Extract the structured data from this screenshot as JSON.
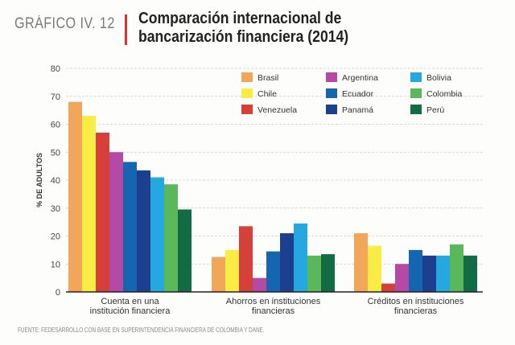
{
  "header": {
    "label": "GRÁFICO IV. 12",
    "title_line1": "Comparación internacional de",
    "title_line2": "bancarización financiera (2014)"
  },
  "source": "FUENTE: FEDESARROLLO CON BASE EN SUPERINTENDENCIA FINANCIERA DE COLOMBIA Y DANE.",
  "chart_data": {
    "type": "bar",
    "ylabel": "% DE ADULTOS",
    "ylim": [
      0,
      80
    ],
    "yticks": [
      0,
      10,
      20,
      30,
      40,
      50,
      60,
      70,
      80
    ],
    "grid": true,
    "legend_placement": "top-right",
    "categories": [
      [
        "Cuenta en una",
        "institución financiera"
      ],
      [
        "Ahorros en instituciones",
        "financieras"
      ],
      [
        "Créditos en instituciones",
        "financieras"
      ]
    ],
    "series": [
      {
        "name": "Brasil",
        "color": "#f2a65a",
        "values": [
          68,
          12.5,
          21
        ]
      },
      {
        "name": "Chile",
        "color": "#f9ec45",
        "values": [
          63,
          15,
          16.5
        ]
      },
      {
        "name": "Venezuela",
        "color": "#d5403a",
        "values": [
          57,
          23.5,
          3
        ]
      },
      {
        "name": "Argentina",
        "color": "#b54aa6",
        "values": [
          50,
          5,
          10
        ]
      },
      {
        "name": "Ecuador",
        "color": "#1565b0",
        "values": [
          46.5,
          14.5,
          15
        ]
      },
      {
        "name": "Panamá",
        "color": "#1c3f8f",
        "values": [
          43.5,
          21,
          13
        ]
      },
      {
        "name": "Bolivia",
        "color": "#25a8e0",
        "values": [
          41,
          24.5,
          13
        ]
      },
      {
        "name": "Colombia",
        "color": "#5bb85a",
        "values": [
          38.5,
          13,
          17
        ]
      },
      {
        "name": "Perú",
        "color": "#136b45",
        "values": [
          29.5,
          13.5,
          13
        ]
      }
    ]
  }
}
